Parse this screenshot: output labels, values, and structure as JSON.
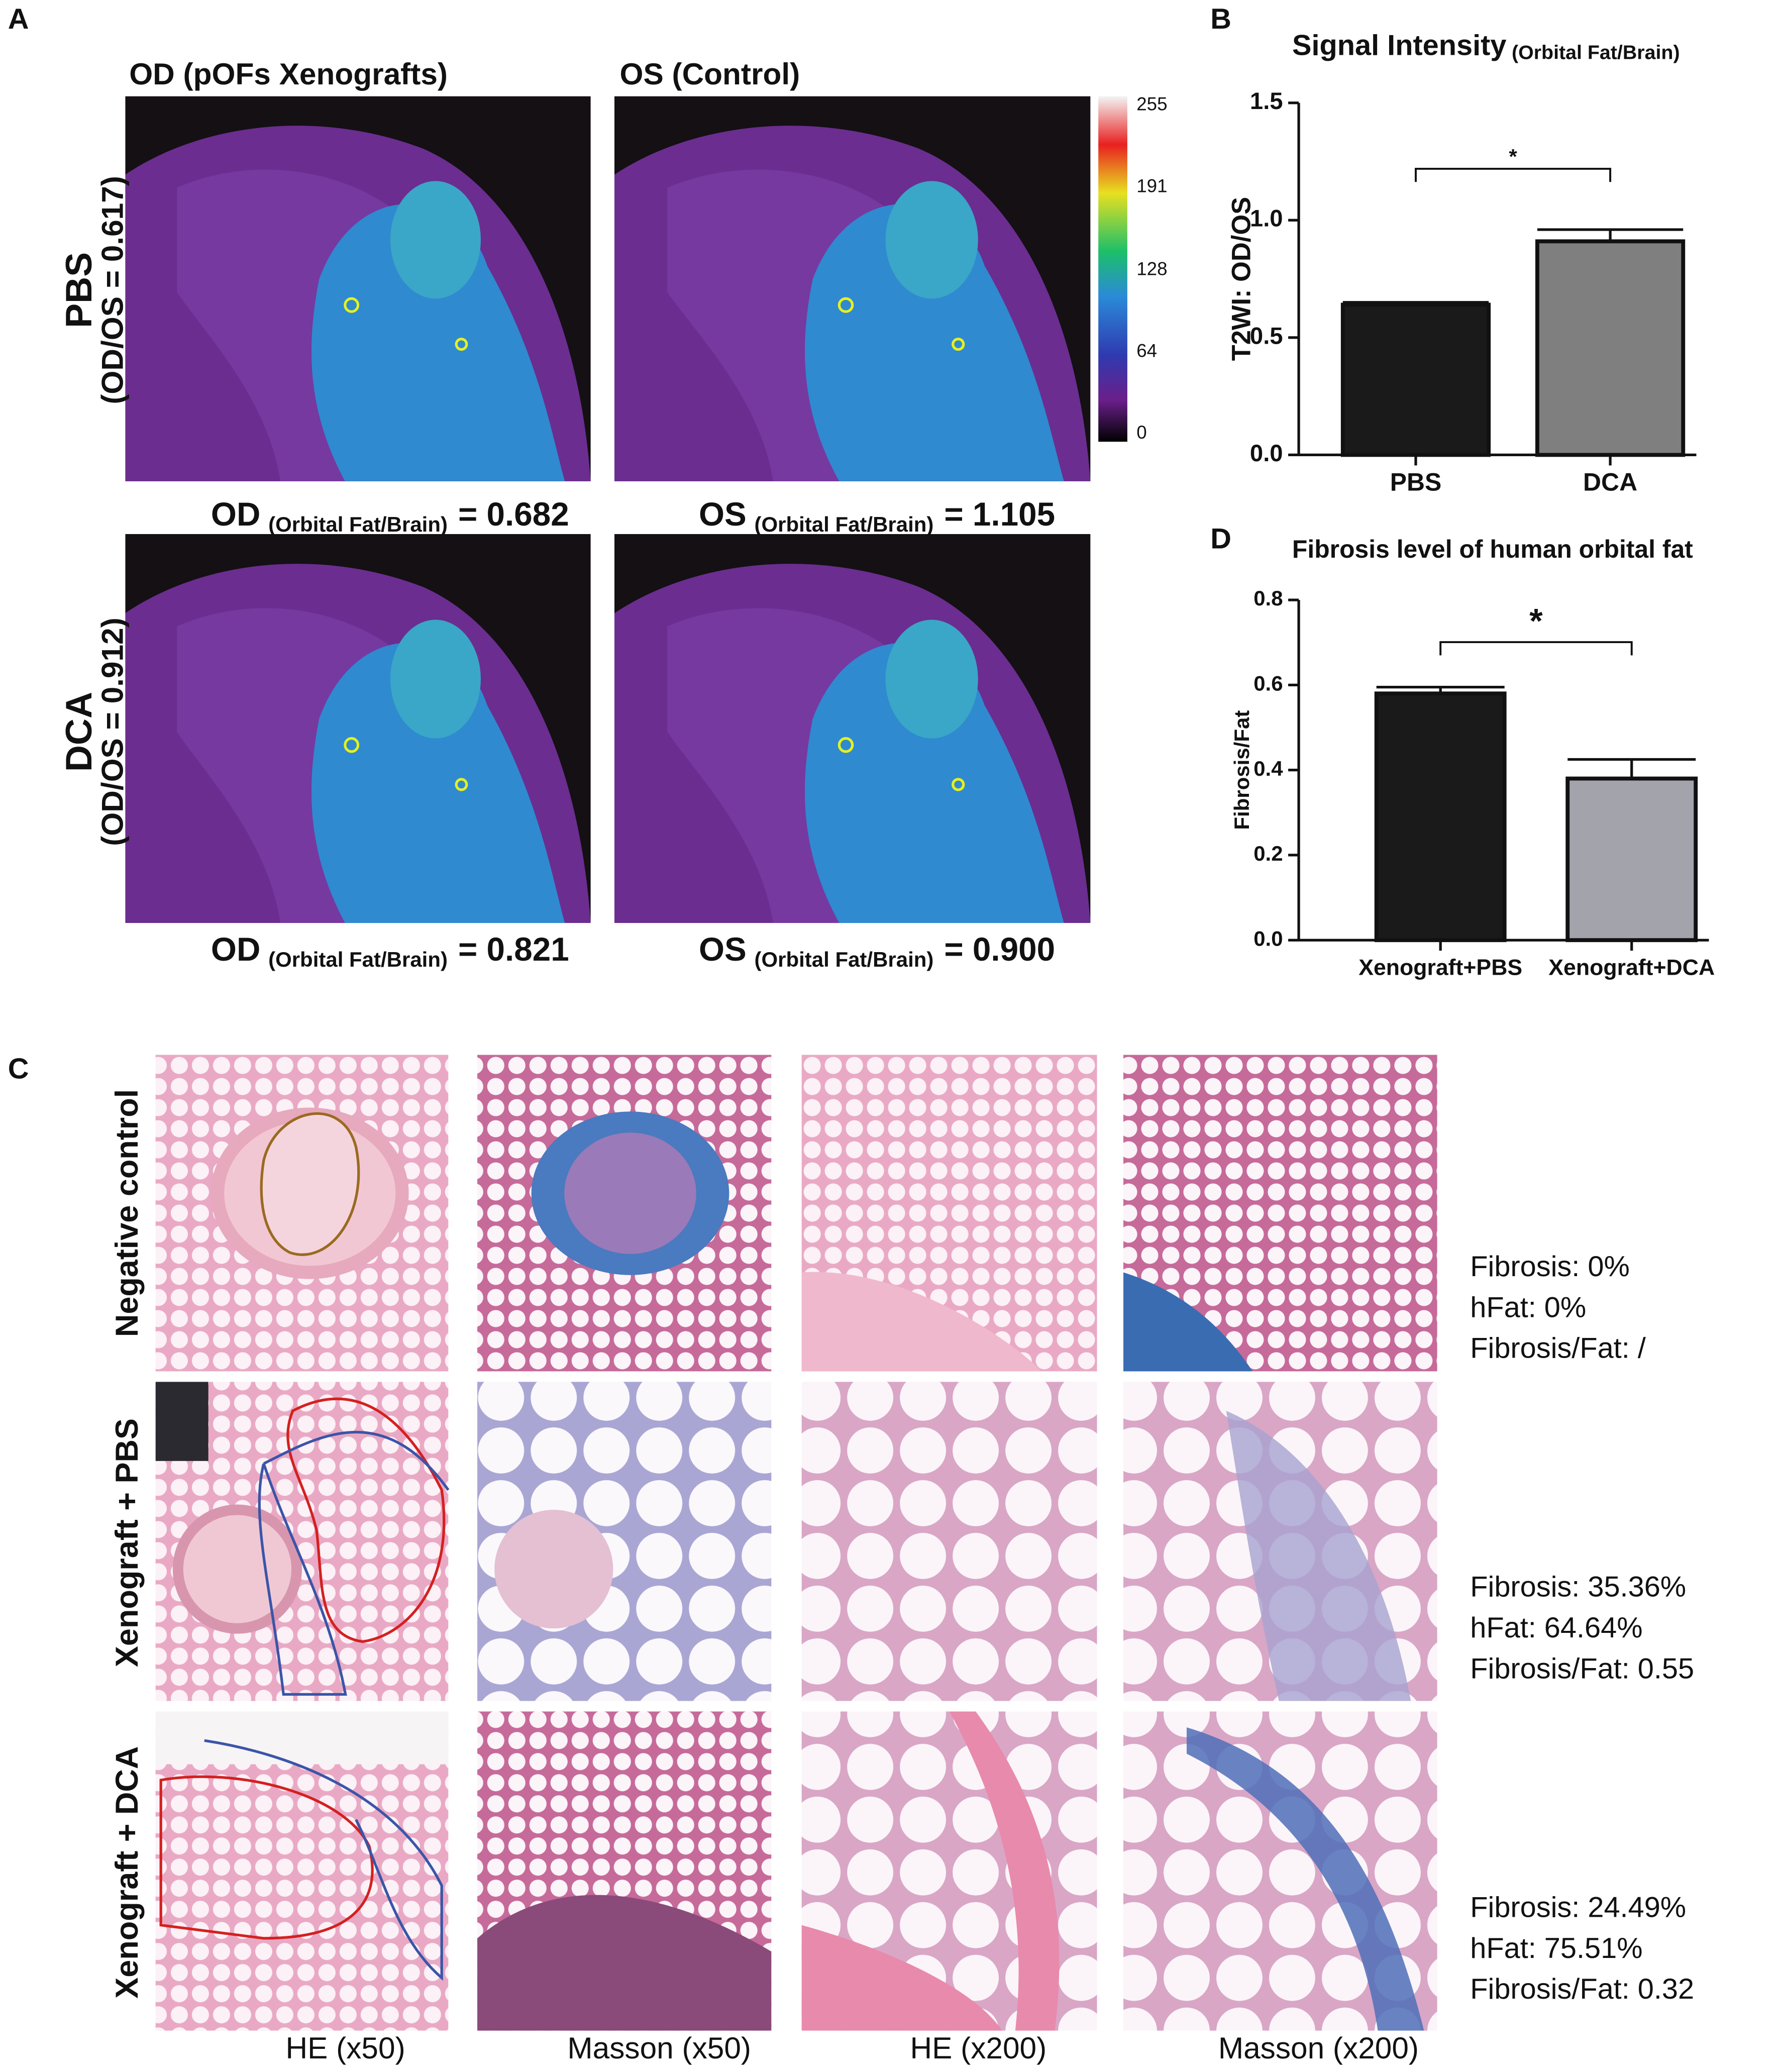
{
  "panels": {
    "A": {
      "label": "A",
      "columns": [
        "OD (pOFs Xenografts)",
        "OS (Control)"
      ],
      "rows": [
        {
          "name": "PBS",
          "ratio": "(OD/OS = 0.617)"
        },
        {
          "name": "DCA",
          "ratio": "(OD/OS = 0.912)"
        }
      ],
      "captions": [
        {
          "eye": "OD",
          "sub": "(Orbital Fat/Brain)",
          "value": "= 0.682"
        },
        {
          "eye": "OS",
          "sub": "(Orbital Fat/Brain)",
          "value": "= 1.105"
        },
        {
          "eye": "OD",
          "sub": "(Orbital Fat/Brain)",
          "value": "= 0.821"
        },
        {
          "eye": "OS",
          "sub": "(Orbital Fat/Brain)",
          "value": "= 0.900"
        }
      ],
      "colorbar_ticks": [
        255,
        191,
        128,
        64,
        0
      ]
    },
    "B": {
      "label": "B"
    },
    "C": {
      "label": "C",
      "rows": [
        "Negative control",
        "Xenograft + PBS",
        "Xenograft + DCA"
      ],
      "columns": [
        "HE (x50)",
        "Masson (x50)",
        "HE (x200)",
        "Masson (x200)"
      ],
      "summaries": [
        [
          "Fibrosis: 0%",
          "hFat: 0%",
          "Fibrosis/Fat: /"
        ],
        [
          "Fibrosis: 35.36%",
          "hFat: 64.64%",
          "Fibrosis/Fat: 0.55"
        ],
        [
          "Fibrosis: 24.49%",
          "hFat: 75.51%",
          "Fibrosis/Fat: 0.32"
        ]
      ]
    },
    "D": {
      "label": "D"
    }
  },
  "chart_data": [
    {
      "type": "bar",
      "title": "Signal Intensity",
      "title_sub": "(Orbital Fat/Brain)",
      "ylabel": "T2WI: OD/OS",
      "categories": [
        "PBS",
        "DCA"
      ],
      "values": [
        0.64,
        0.91
      ],
      "errors": [
        0.01,
        0.05
      ],
      "colors": [
        "#1a1a1a",
        "#7f7f7f"
      ],
      "ylim": [
        0,
        1.5
      ],
      "yticks": [
        {
          "value": 0,
          "label": "0.0"
        },
        {
          "value": 0.5,
          "label": "0.5"
        },
        {
          "value": 1,
          "label": "1.0"
        },
        {
          "value": 1.5,
          "label": "1.5"
        }
      ],
      "significance": "*"
    },
    {
      "type": "bar",
      "title": "Fibrosis level of human orbital fat",
      "ylabel": "Fibrosis/Fat",
      "categories": [
        "Xenograft+PBS",
        "Xenograft+DCA"
      ],
      "values": [
        0.58,
        0.38
      ],
      "errors": [
        0.015,
        0.045
      ],
      "colors": [
        "#1a1a1a",
        "#a3a3ab"
      ],
      "ylim": [
        0,
        0.8
      ],
      "yticks": [
        {
          "value": 0,
          "label": "0.0"
        },
        0.2,
        0.4,
        0.6,
        0.8
      ],
      "significance": "*"
    }
  ]
}
